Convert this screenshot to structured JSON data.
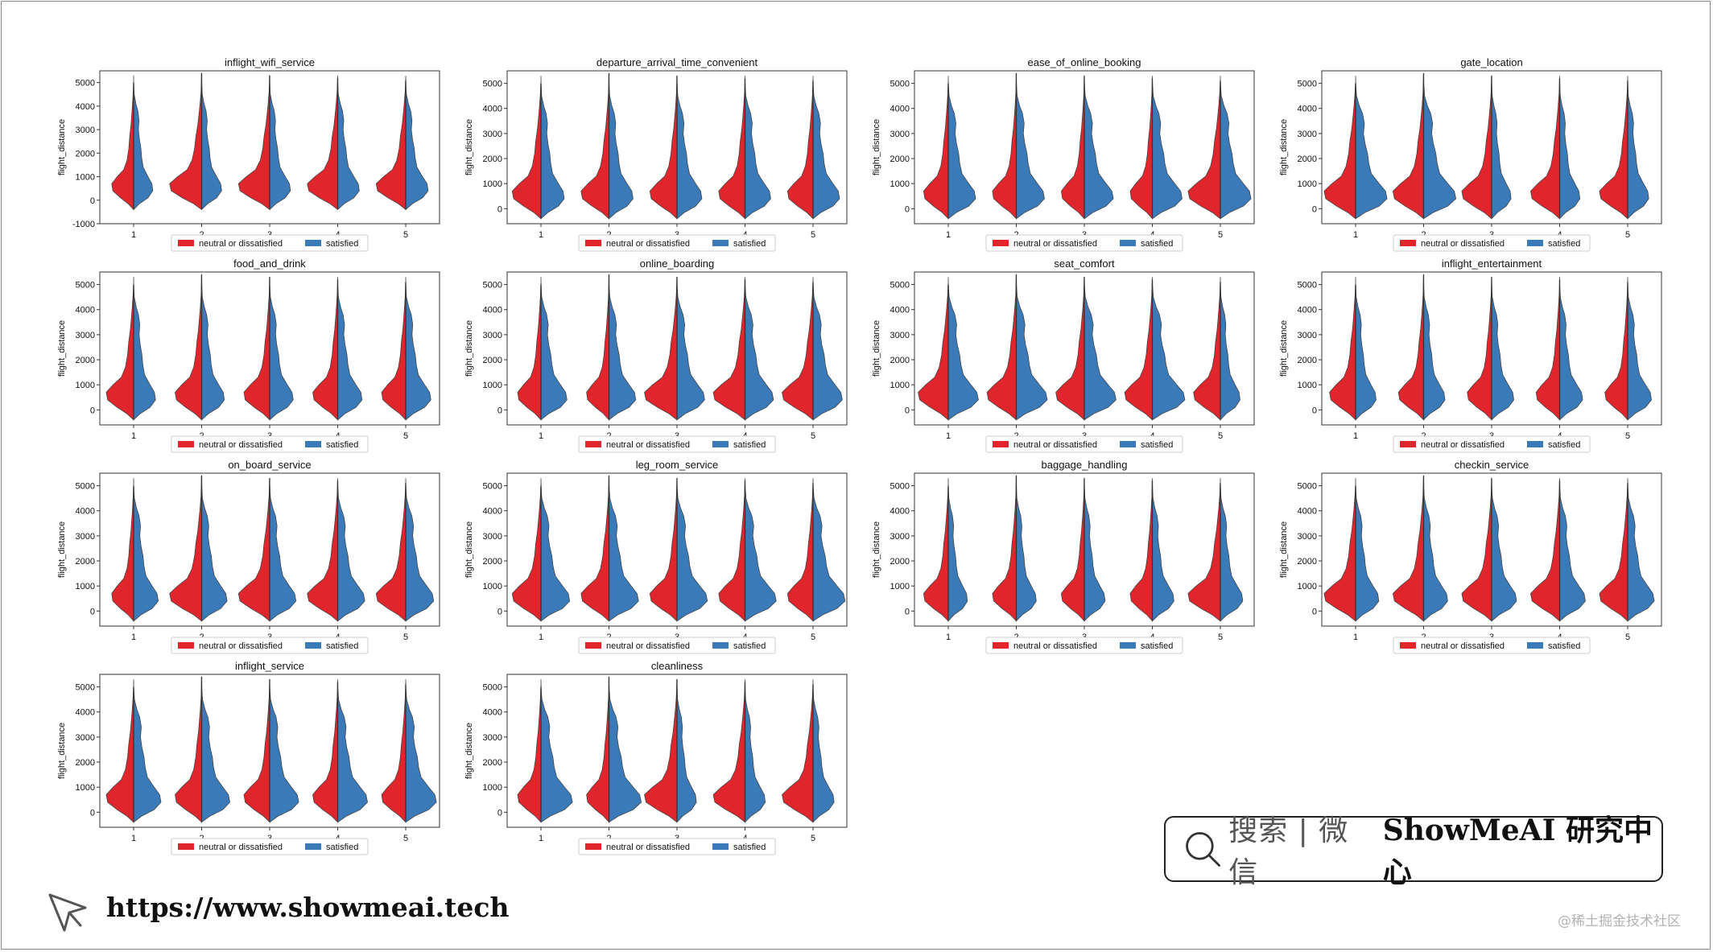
{
  "chart_data": {
    "type": "violin",
    "split": true,
    "y_label": "flight_distance",
    "x_categories": [
      "1",
      "2",
      "3",
      "4",
      "5"
    ],
    "y_ticks_default": [
      0,
      1000,
      2000,
      3000,
      4000,
      5000
    ],
    "y_ticks_first": [
      -1000,
      0,
      1000,
      2000,
      3000,
      4000,
      5000
    ],
    "legend": [
      "neutral or dissatisfied",
      "satisfied"
    ],
    "colors": {
      "neutral_or_dissatisfied": "#e0262c",
      "satisfied": "#3b7ab8"
    },
    "subplots": [
      {
        "title": "inflight_wifi_service",
        "ylim": [
          -1000,
          5500
        ]
      },
      {
        "title": "departure_arrival_time_convenient",
        "ylim": [
          -600,
          5500
        ]
      },
      {
        "title": "ease_of_online_booking",
        "ylim": [
          -600,
          5500
        ]
      },
      {
        "title": "gate_location",
        "ylim": [
          -600,
          5500
        ]
      },
      {
        "title": "food_and_drink",
        "ylim": [
          -600,
          5500
        ]
      },
      {
        "title": "online_boarding",
        "ylim": [
          -600,
          5500
        ]
      },
      {
        "title": "seat_comfort",
        "ylim": [
          -600,
          5500
        ]
      },
      {
        "title": "inflight_entertainment",
        "ylim": [
          -600,
          5500
        ]
      },
      {
        "title": "on_board_service",
        "ylim": [
          -600,
          5500
        ]
      },
      {
        "title": "leg_room_service",
        "ylim": [
          -600,
          5500
        ]
      },
      {
        "title": "baggage_handling",
        "ylim": [
          -600,
          5500
        ]
      },
      {
        "title": "checkin_service",
        "ylim": [
          -600,
          5500
        ]
      },
      {
        "title": "inflight_service",
        "ylim": [
          -600,
          5500
        ]
      },
      {
        "title": "cleanliness",
        "ylim": [
          -600,
          5500
        ]
      }
    ]
  },
  "search": {
    "placeholder": "搜索 | 微信",
    "brand": "ShowMeAI 研究中心"
  },
  "footer": {
    "url": "https://www.showmeai.tech"
  },
  "watermark": "@稀土掘金技术社区"
}
